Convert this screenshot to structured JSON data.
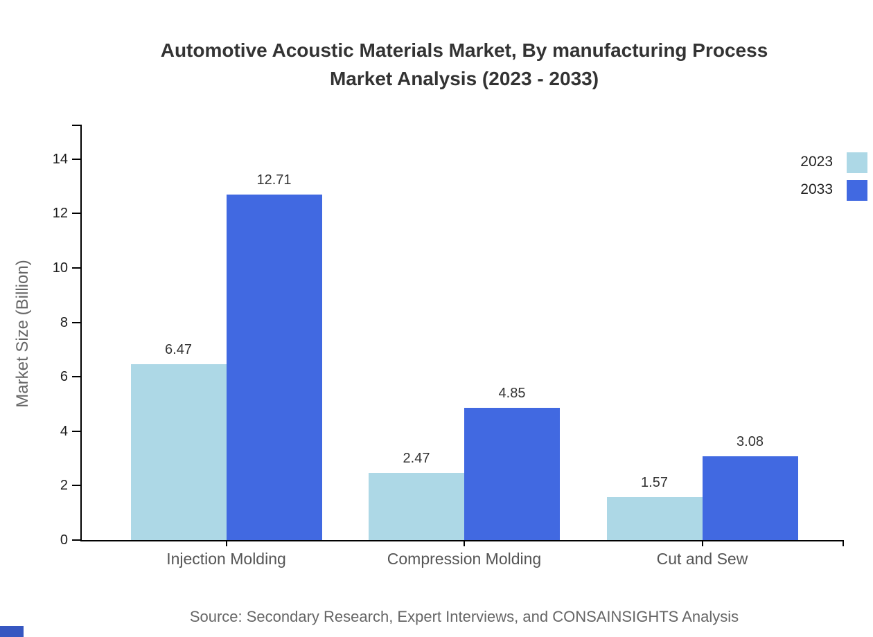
{
  "title": {
    "line1": "Automotive Acoustic Materials Market, By manufacturing Process",
    "line2": "Market Analysis (2023 - 2033)"
  },
  "chart_data": {
    "type": "bar",
    "categories": [
      "Injection Molding",
      "Compression Molding",
      "Cut and Sew"
    ],
    "series": [
      {
        "name": "2023",
        "color": "#ADD8E6",
        "values": [
          6.47,
          2.47,
          1.57
        ]
      },
      {
        "name": "2033",
        "color": "#4169E1",
        "values": [
          12.71,
          4.85,
          3.08
        ]
      }
    ],
    "title": "Automotive Acoustic Materials Market, By manufacturing Process Market Analysis (2023 - 2033)",
    "xlabel": "",
    "ylabel": "Market Size (Billion)",
    "ylim": [
      0,
      15.27
    ],
    "yticks": [
      0,
      2,
      4,
      6,
      8,
      10,
      12,
      14
    ],
    "grid": false,
    "legend_position": "top-right",
    "data_labels": true
  },
  "source": {
    "text": "Source: Secondary Research, Expert Interviews, and CONSAINSIGHTS Analysis"
  },
  "colors": {
    "series_2023": "#ADD8E6",
    "series_2033": "#4169E1",
    "axis": "#000000",
    "title_text": "#333333",
    "category_text": "#555555",
    "muted_text": "#666666",
    "brand_square": "#3657C1"
  }
}
